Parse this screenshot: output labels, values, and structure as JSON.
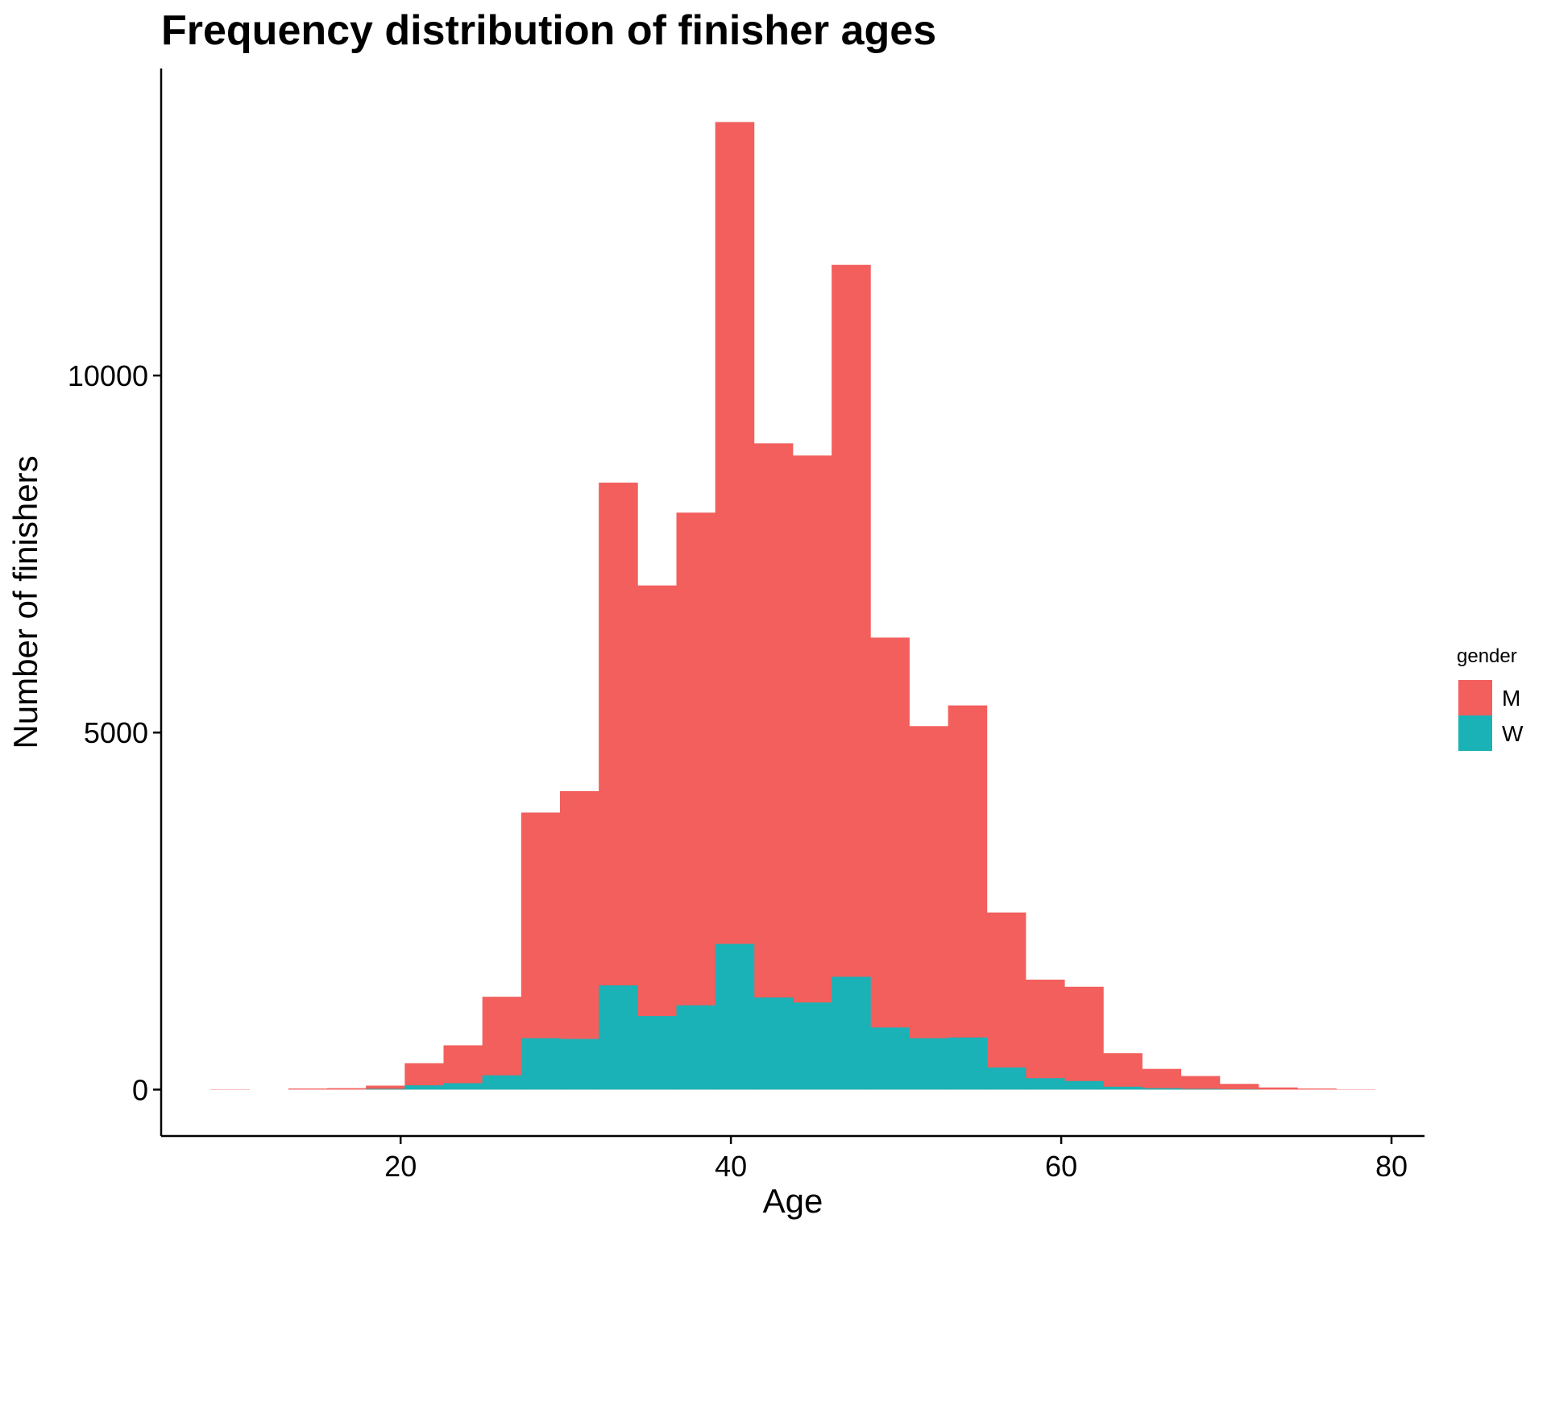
{
  "chart_data": {
    "type": "bar",
    "title": "Frequency distribution of finisher ages",
    "xlabel": "Age",
    "ylabel": "Number of finishers",
    "xlim": [
      5.5,
      82
    ],
    "ylim": [
      -650,
      14300
    ],
    "xticks": [
      20,
      40,
      60,
      80
    ],
    "yticks": [
      0,
      5000,
      10000
    ],
    "grid": false,
    "stacked": false,
    "legend": {
      "title": "gender",
      "position": "right"
    },
    "bin_width": 2.35,
    "bin_starts": [
      8.5,
      10.85,
      13.2,
      15.55,
      17.9,
      20.25,
      22.6,
      24.95,
      27.3,
      29.65,
      32.0,
      34.35,
      36.7,
      39.05,
      41.4,
      43.75,
      46.1,
      48.45,
      50.8,
      53.15,
      55.5,
      57.85,
      60.2,
      62.55,
      64.9,
      67.25,
      69.6,
      71.95,
      74.3,
      76.65
    ],
    "series": [
      {
        "name": "M",
        "color": "#F25F5C",
        "values": [
          5,
          0,
          15,
          20,
          55,
          370,
          620,
          1300,
          3880,
          4180,
          8500,
          7060,
          8080,
          13550,
          9050,
          8880,
          11550,
          6330,
          5090,
          5380,
          2480,
          1540,
          1440,
          510,
          290,
          190,
          80,
          30,
          15,
          5
        ]
      },
      {
        "name": "W",
        "color": "#1AB2B6",
        "values": [
          0,
          0,
          0,
          0,
          10,
          60,
          90,
          200,
          720,
          710,
          1460,
          1030,
          1180,
          2040,
          1290,
          1220,
          1580,
          870,
          720,
          730,
          310,
          160,
          120,
          40,
          20,
          10,
          5,
          0,
          0,
          0
        ]
      }
    ]
  }
}
